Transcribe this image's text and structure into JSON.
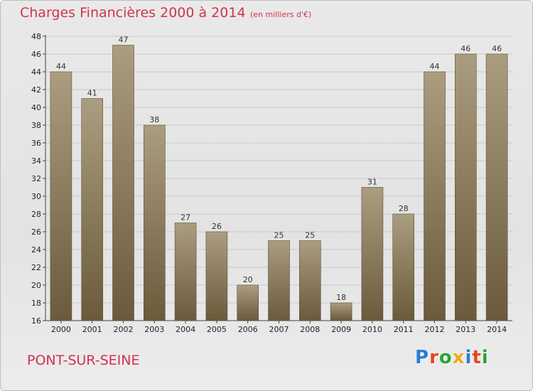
{
  "header": {
    "title": "Charges Financières 2000 à 2014",
    "subtitle": "(en milliers d'€)"
  },
  "footer": {
    "commune": "PONT-SUR-SEINE",
    "logo_text": "Proxiti",
    "logo_colors": [
      "#2b7bd6",
      "#e8451f",
      "#27a537",
      "#f0a81a",
      "#2b7bd6",
      "#e8451f",
      "#27a537"
    ]
  },
  "colors": {
    "title": "#d2324f",
    "bar_top": "#ab9d7f",
    "bar_bottom": "#6b5a3c",
    "grid": "#c9c9c9"
  },
  "chart_data": {
    "type": "bar",
    "title": "Charges Financières 2000 à 2014",
    "subtitle": "(en milliers d'€)",
    "categories": [
      "2000",
      "2001",
      "2002",
      "2003",
      "2004",
      "2005",
      "2006",
      "2007",
      "2008",
      "2009",
      "2010",
      "2011",
      "2012",
      "2013",
      "2014"
    ],
    "values": [
      44,
      41,
      47,
      38,
      27,
      26,
      20,
      25,
      25,
      18,
      31,
      28,
      44,
      46,
      46
    ],
    "ylim": [
      16,
      48
    ],
    "yticks": [
      16,
      18,
      20,
      22,
      24,
      26,
      28,
      30,
      32,
      34,
      36,
      38,
      40,
      42,
      44,
      46,
      48
    ],
    "grid": true,
    "legend": "none"
  }
}
